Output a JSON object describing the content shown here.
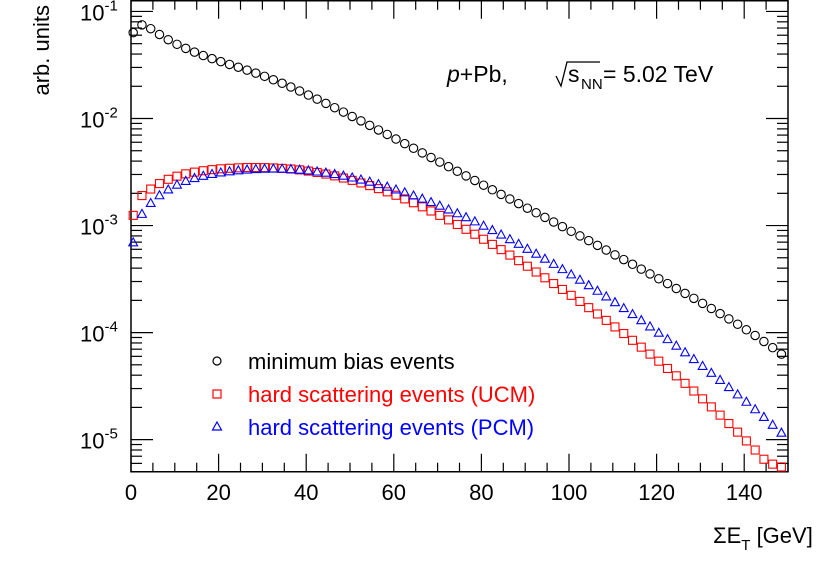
{
  "chart_data": {
    "type": "scatter",
    "yscale": "log",
    "xlim": [
      0,
      150
    ],
    "ylim_log10": [
      -5.3,
      -0.9
    ],
    "xticks": [
      0,
      20,
      40,
      60,
      80,
      100,
      120,
      140
    ],
    "xtick_labels": [
      "0",
      "20",
      "40",
      "60",
      "80",
      "100",
      "120",
      "140"
    ],
    "yticks_log10": [
      -5,
      -4,
      -3,
      -2,
      -1
    ],
    "ytick_labels": [
      {
        "base": "10",
        "exp": "-5"
      },
      {
        "base": "10",
        "exp": "-4"
      },
      {
        "base": "10",
        "exp": "-3"
      },
      {
        "base": "10",
        "exp": "-2"
      },
      {
        "base": "10",
        "exp": "-1"
      }
    ],
    "xlabel": {
      "main": "ΣE",
      "sub": "T",
      "rest": " [GeV]"
    },
    "ylabel": "arb. units",
    "annotation": {
      "p": "p",
      "text1": "+Pb, ",
      "s": "s",
      "sub": "NN",
      "text2": " = 5.02 TeV"
    },
    "legend_position": "bottom-left",
    "x": [
      0.5,
      2.5,
      4.5,
      6.5,
      8.5,
      10.5,
      12.5,
      14.5,
      16.5,
      18.5,
      20.5,
      22.5,
      24.5,
      26.5,
      28.5,
      30.5,
      32.5,
      34.5,
      36.5,
      38.5,
      40.5,
      42.5,
      44.5,
      46.5,
      48.5,
      50.5,
      52.5,
      54.5,
      56.5,
      58.5,
      60.5,
      62.5,
      64.5,
      66.5,
      68.5,
      70.5,
      72.5,
      74.5,
      76.5,
      78.5,
      80.5,
      82.5,
      84.5,
      86.5,
      88.5,
      90.5,
      92.5,
      94.5,
      96.5,
      98.5,
      100.5,
      102.5,
      104.5,
      106.5,
      108.5,
      110.5,
      112.5,
      114.5,
      116.5,
      118.5,
      120.5,
      122.5,
      124.5,
      126.5,
      128.5,
      130.5,
      132.5,
      134.5,
      136.5,
      138.5,
      140.5,
      142.5,
      144.5,
      146.5,
      148.5
    ],
    "series": [
      {
        "name": "minimum bias events",
        "color": "#000000",
        "marker": "circle",
        "log10_values": [
          -1.198,
          -1.125,
          -1.161,
          -1.215,
          -1.264,
          -1.307,
          -1.345,
          -1.38,
          -1.412,
          -1.441,
          -1.469,
          -1.495,
          -1.521,
          -1.548,
          -1.576,
          -1.606,
          -1.638,
          -1.671,
          -1.706,
          -1.743,
          -1.781,
          -1.819,
          -1.859,
          -1.899,
          -1.94,
          -1.981,
          -2.022,
          -2.064,
          -2.107,
          -2.149,
          -2.192,
          -2.235,
          -2.278,
          -2.321,
          -2.364,
          -2.407,
          -2.45,
          -2.493,
          -2.536,
          -2.579,
          -2.623,
          -2.666,
          -2.709,
          -2.752,
          -2.795,
          -2.838,
          -2.881,
          -2.924,
          -2.967,
          -3.01,
          -3.054,
          -3.097,
          -3.141,
          -3.185,
          -3.229,
          -3.274,
          -3.318,
          -3.362,
          -3.407,
          -3.452,
          -3.497,
          -3.542,
          -3.588,
          -3.634,
          -3.68,
          -3.727,
          -3.775,
          -3.823,
          -3.872,
          -3.922,
          -3.974,
          -4.027,
          -4.083,
          -4.141,
          -4.201
        ]
      },
      {
        "name": "hard scattering events (UCM)",
        "color": "#ff0000",
        "marker": "square",
        "log10_values": [
          -2.905,
          -2.72,
          -2.659,
          -2.608,
          -2.568,
          -2.539,
          -2.517,
          -2.501,
          -2.488,
          -2.478,
          -2.47,
          -2.465,
          -2.461,
          -2.458,
          -2.458,
          -2.459,
          -2.462,
          -2.466,
          -2.472,
          -2.48,
          -2.491,
          -2.504,
          -2.519,
          -2.536,
          -2.556,
          -2.578,
          -2.602,
          -2.627,
          -2.655,
          -2.685,
          -2.717,
          -2.751,
          -2.787,
          -2.825,
          -2.864,
          -2.905,
          -2.947,
          -2.99,
          -3.035,
          -3.081,
          -3.128,
          -3.176,
          -3.225,
          -3.276,
          -3.328,
          -3.38,
          -3.434,
          -3.488,
          -3.542,
          -3.597,
          -3.652,
          -3.709,
          -3.767,
          -3.826,
          -3.886,
          -3.947,
          -4.009,
          -4.072,
          -4.136,
          -4.201,
          -4.267,
          -4.335,
          -4.404,
          -4.474,
          -4.546,
          -4.619,
          -4.694,
          -4.771,
          -4.85,
          -4.93,
          -5.012,
          -5.097,
          -5.183,
          -5.229,
          -5.255
        ]
      },
      {
        "name": "hard scattering events (PCM)",
        "color": "#0000ff",
        "marker": "triangle",
        "log10_values": [
          -3.158,
          -2.892,
          -2.79,
          -2.718,
          -2.664,
          -2.619,
          -2.584,
          -2.557,
          -2.536,
          -2.519,
          -2.505,
          -2.494,
          -2.485,
          -2.478,
          -2.473,
          -2.47,
          -2.469,
          -2.47,
          -2.474,
          -2.479,
          -2.486,
          -2.496,
          -2.507,
          -2.52,
          -2.535,
          -2.552,
          -2.571,
          -2.591,
          -2.614,
          -2.638,
          -2.664,
          -2.691,
          -2.72,
          -2.75,
          -2.782,
          -2.815,
          -2.85,
          -2.886,
          -2.923,
          -2.962,
          -3.002,
          -3.043,
          -3.085,
          -3.128,
          -3.172,
          -3.218,
          -3.264,
          -3.311,
          -3.359,
          -3.408,
          -3.457,
          -3.507,
          -3.558,
          -3.61,
          -3.663,
          -3.717,
          -3.772,
          -3.828,
          -3.885,
          -3.943,
          -4.002,
          -4.062,
          -4.123,
          -4.185,
          -4.248,
          -4.312,
          -4.377,
          -4.443,
          -4.51,
          -4.578,
          -4.647,
          -4.717,
          -4.789,
          -4.862,
          -4.936
        ]
      }
    ]
  }
}
